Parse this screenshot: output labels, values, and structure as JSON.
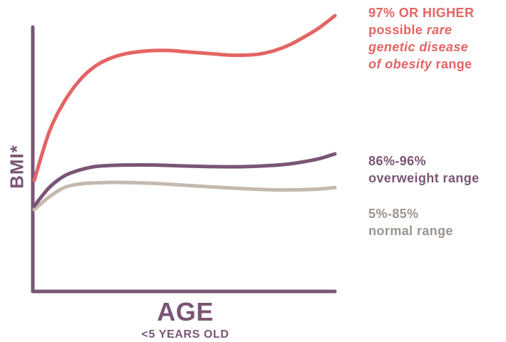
{
  "colors": {
    "axis": "#7a5575",
    "high": "#e46464",
    "overweight": "#7a5575",
    "normal": "#c5b9ad",
    "normal_text": "#9c948d"
  },
  "chart_data": {
    "type": "line",
    "title": "",
    "xlabel": "AGE",
    "xlabel_sub": "<5 YEARS OLD",
    "ylabel": "BMI*",
    "grid": false,
    "xlim": [
      0,
      1
    ],
    "ylim": [
      0,
      1
    ],
    "series": [
      {
        "name": "97% OR HIGHER possible rare genetic disease of obesity range",
        "color_key": "high",
        "x": [
          0,
          0.05,
          0.1,
          0.15,
          0.2,
          0.25,
          0.3,
          0.35,
          0.4,
          0.45,
          0.5,
          0.55,
          0.6,
          0.65,
          0.7,
          0.75,
          0.8,
          0.85,
          0.9,
          0.95,
          1.0
        ],
        "y": [
          0.29,
          0.5,
          0.63,
          0.72,
          0.78,
          0.815,
          0.835,
          0.845,
          0.85,
          0.85,
          0.845,
          0.84,
          0.835,
          0.83,
          0.83,
          0.835,
          0.85,
          0.875,
          0.91,
          0.95,
          1.0
        ]
      },
      {
        "name": "86%-96% overweight range",
        "color_key": "overweight",
        "x": [
          0,
          0.05,
          0.1,
          0.15,
          0.2,
          0.25,
          0.3,
          0.4,
          0.5,
          0.6,
          0.7,
          0.8,
          0.85,
          0.9,
          0.95,
          1.0
        ],
        "y": [
          0.18,
          0.26,
          0.31,
          0.335,
          0.35,
          0.355,
          0.357,
          0.357,
          0.353,
          0.35,
          0.35,
          0.356,
          0.362,
          0.372,
          0.385,
          0.405
        ]
      },
      {
        "name": "5%-85% normal range",
        "color_key": "normal",
        "x": [
          0,
          0.05,
          0.1,
          0.15,
          0.2,
          0.25,
          0.3,
          0.4,
          0.5,
          0.6,
          0.7,
          0.8,
          0.85,
          0.9,
          0.95,
          1.0
        ],
        "y": [
          0.165,
          0.22,
          0.26,
          0.275,
          0.28,
          0.282,
          0.282,
          0.278,
          0.27,
          0.262,
          0.255,
          0.25,
          0.25,
          0.251,
          0.254,
          0.26
        ]
      }
    ]
  },
  "labels": {
    "high": {
      "line1": "97% OR HIGHER",
      "line2": "possible ",
      "line2_em": "rare",
      "line3_em": "genetic disease",
      "line4_em": "of obesity",
      "line4": " range"
    },
    "overweight": {
      "line1": "86%-96%",
      "line2": "overweight range"
    },
    "normal": {
      "line1": "5%-85%",
      "line2": "normal range"
    }
  }
}
